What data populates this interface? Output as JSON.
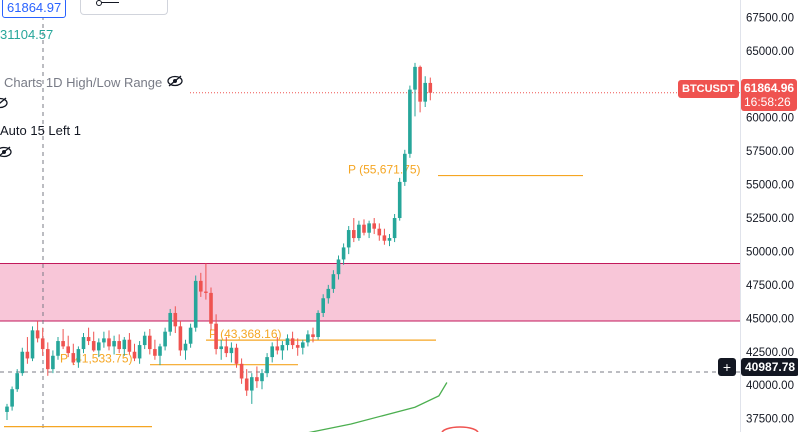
{
  "header": {
    "last_price_box": "61864.97",
    "prev_value": "31104.57"
  },
  "indicators": [
    {
      "label": "Charts 1D High/Low Range",
      "icon": "eye-crossed-icon"
    },
    {
      "label": "Auto 15 Left 1",
      "icon": "eye-crossed-icon"
    }
  ],
  "price_axis": {
    "ticks": [
      "67500.00",
      "65000.00",
      "62500.00",
      "60000.00",
      "57500.00",
      "55000.00",
      "52500.00",
      "50000.00",
      "47500.00",
      "45000.00",
      "42500.00",
      "40000.00",
      "37500.00"
    ]
  },
  "badges": {
    "symbol": "BTCUSDT",
    "price": "61864.96",
    "countdown": "16:58:26",
    "crosshair_price": "40987.78"
  },
  "colors": {
    "up": "#26a69a",
    "down": "#ef5350",
    "pivot": "#f5a623",
    "zone_fill": "#f8c6d8",
    "zone_border": "#c2185b",
    "ma": "#4caf50"
  },
  "chart_data": {
    "type": "candlestick",
    "ylim": [
      36500,
      68800
    ],
    "levels": [
      {
        "label": "P (55,671.75)",
        "value": 55671.75
      },
      {
        "label": "P (43,368.16)",
        "value": 43368.16
      },
      {
        "label": "P (41,533.75)",
        "value": 41533.75
      }
    ],
    "zone": [
      44800,
      49100
    ],
    "ma_points": [
      [
        0.37,
        36250
      ],
      [
        0.44,
        37100
      ],
      [
        0.52,
        38350
      ],
      [
        0.55,
        39200
      ],
      [
        0.56,
        40200
      ]
    ],
    "candles": [
      [
        38000,
        38600,
        37400,
        38400
      ],
      [
        38400,
        39900,
        38100,
        39700
      ],
      [
        39700,
        41200,
        39500,
        40900
      ],
      [
        40900,
        42800,
        40700,
        42500
      ],
      [
        42500,
        43600,
        41600,
        42000
      ],
      [
        42000,
        44400,
        41800,
        44100
      ],
      [
        44100,
        44800,
        43200,
        43500
      ],
      [
        43500,
        44300,
        42200,
        42700
      ],
      [
        42700,
        43200,
        40700,
        41200
      ],
      [
        41200,
        42600,
        40900,
        42200
      ],
      [
        42200,
        43600,
        41900,
        43300
      ],
      [
        43300,
        44200,
        42700,
        42900
      ],
      [
        42900,
        43700,
        42100,
        42400
      ],
      [
        42400,
        43100,
        41500,
        41700
      ],
      [
        41700,
        42900,
        41300,
        42700
      ],
      [
        42700,
        43900,
        42400,
        43600
      ],
      [
        43600,
        44300,
        43000,
        43300
      ],
      [
        43300,
        44000,
        42500,
        42600
      ],
      [
        42600,
        43500,
        42100,
        43200
      ],
      [
        43200,
        44000,
        42800,
        43500
      ],
      [
        43500,
        44100,
        42600,
        42900
      ],
      [
        42900,
        43700,
        42300,
        43300
      ],
      [
        43300,
        43800,
        42400,
        42700
      ],
      [
        42700,
        43600,
        42200,
        43400
      ],
      [
        43400,
        43900,
        42300,
        42500
      ],
      [
        42500,
        43100,
        41800,
        42000
      ],
      [
        42000,
        43300,
        41600,
        43000
      ],
      [
        43000,
        44000,
        42700,
        43700
      ],
      [
        43700,
        44200,
        42300,
        42700
      ],
      [
        42700,
        43400,
        41900,
        42200
      ],
      [
        42200,
        43100,
        41500,
        42900
      ],
      [
        42900,
        44300,
        42600,
        44000
      ],
      [
        44000,
        45700,
        43700,
        45400
      ],
      [
        45400,
        45900,
        43900,
        44400
      ],
      [
        44400,
        44800,
        42200,
        42600
      ],
      [
        42600,
        43400,
        41900,
        43100
      ],
      [
        43100,
        44600,
        42800,
        44300
      ],
      [
        44300,
        48200,
        44000,
        47800
      ],
      [
        47800,
        48400,
        46600,
        47000
      ],
      [
        47000,
        49100,
        46400,
        46900
      ],
      [
        46900,
        47300,
        44100,
        44600
      ],
      [
        44600,
        45300,
        42300,
        42700
      ],
      [
        42700,
        43400,
        41900,
        42900
      ],
      [
        42900,
        43600,
        42100,
        42400
      ],
      [
        42400,
        43200,
        41700,
        42800
      ],
      [
        42800,
        43100,
        41300,
        41600
      ],
      [
        41600,
        42000,
        40100,
        40500
      ],
      [
        40500,
        41200,
        39200,
        39600
      ],
      [
        39600,
        40900,
        38600,
        40600
      ],
      [
        40600,
        41400,
        39800,
        40300
      ],
      [
        40300,
        41200,
        39700,
        40900
      ],
      [
        40900,
        42400,
        40600,
        42100
      ],
      [
        42100,
        43200,
        41700,
        42900
      ],
      [
        42900,
        43600,
        42300,
        42600
      ],
      [
        42600,
        43300,
        41900,
        43000
      ],
      [
        43000,
        43800,
        42600,
        43500
      ],
      [
        43500,
        44000,
        42700,
        43000
      ],
      [
        43000,
        43500,
        42200,
        42800
      ],
      [
        42800,
        43400,
        42300,
        43200
      ],
      [
        43200,
        44100,
        42900,
        43800
      ],
      [
        43800,
        44300,
        43200,
        43600
      ],
      [
        43600,
        45600,
        43400,
        45400
      ],
      [
        45400,
        46800,
        45100,
        46500
      ],
      [
        46500,
        47500,
        46100,
        47200
      ],
      [
        47200,
        48600,
        46900,
        48300
      ],
      [
        48300,
        49700,
        47900,
        49400
      ],
      [
        49400,
        50600,
        49000,
        50300
      ],
      [
        50300,
        51900,
        49800,
        51600
      ],
      [
        51600,
        52500,
        50700,
        51000
      ],
      [
        51000,
        52300,
        50800,
        52000
      ],
      [
        52000,
        52400,
        51200,
        51400
      ],
      [
        51400,
        52300,
        51000,
        52100
      ],
      [
        52100,
        52500,
        51300,
        51700
      ],
      [
        51700,
        52100,
        50800,
        51200
      ],
      [
        51200,
        51700,
        50500,
        50800
      ],
      [
        50800,
        51300,
        50400,
        51000
      ],
      [
        51000,
        52800,
        50700,
        52500
      ],
      [
        52500,
        55500,
        52300,
        55200
      ],
      [
        55200,
        57600,
        54900,
        57300
      ],
      [
        57300,
        62400,
        57000,
        62100
      ],
      [
        62100,
        64100,
        60100,
        63800
      ],
      [
        63800,
        63900,
        60400,
        61200
      ],
      [
        61200,
        63100,
        60800,
        62600
      ],
      [
        62600,
        63000,
        61300,
        61864.96
      ]
    ]
  }
}
